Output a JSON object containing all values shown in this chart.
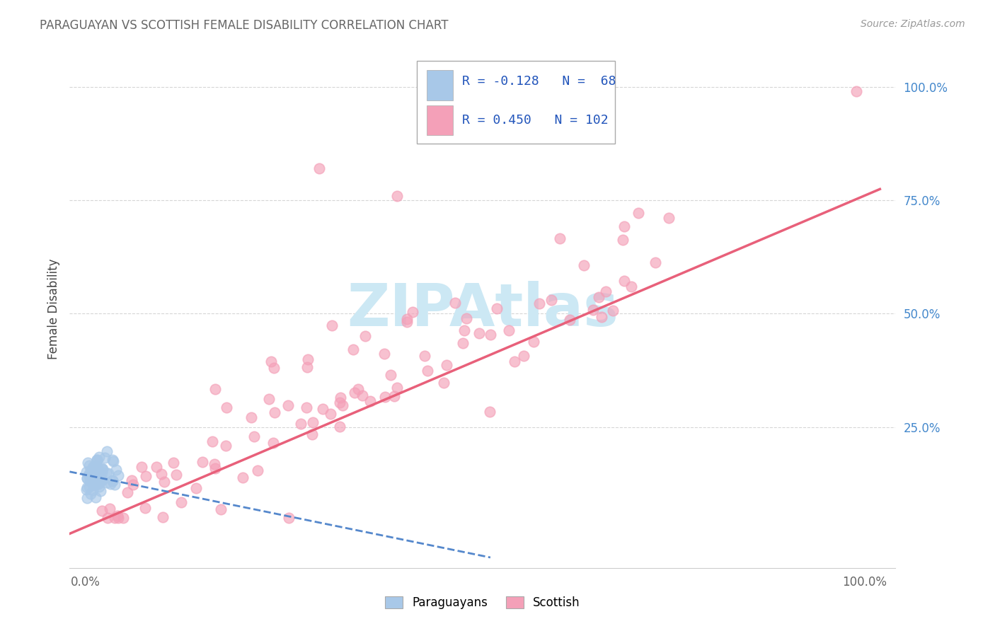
{
  "title": "PARAGUAYAN VS SCOTTISH FEMALE DISABILITY CORRELATION CHART",
  "source": "Source: ZipAtlas.com",
  "ylabel": "Female Disability",
  "paraguayan_R": -0.128,
  "paraguayan_N": 68,
  "scottish_R": 0.45,
  "scottish_N": 102,
  "paraguayan_color": "#a8c8e8",
  "scottish_color": "#f4a0b8",
  "paraguayan_line_color": "#5588cc",
  "scottish_line_color": "#e8607a",
  "title_color": "#666666",
  "source_color": "#999999",
  "ylabel_color": "#444444",
  "ytick_color": "#4488cc",
  "xtick_color": "#666666",
  "watermark_color": "#cce8f4",
  "grid_color": "#cccccc",
  "legend_entries": [
    "Paraguayans",
    "Scottish"
  ]
}
